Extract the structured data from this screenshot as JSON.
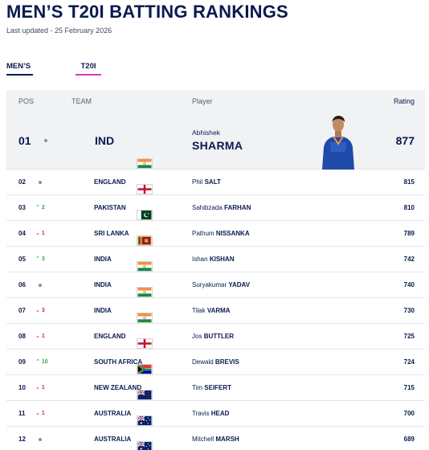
{
  "header": {
    "title": "MEN’S T20I BATTING RANKINGS",
    "last_updated": "Last updated - 25 February 2026"
  },
  "tabs": [
    {
      "label": "MEN’S",
      "active": true
    },
    {
      "label": "T20I",
      "active": true
    }
  ],
  "table": {
    "columns": {
      "pos": "POS",
      "team": "TEAM",
      "player": "Player",
      "rating": "Rating"
    },
    "leader": {
      "pos": "01",
      "movement": "none",
      "flag": "india-flag",
      "team": "IND",
      "first_name": "Abhishek",
      "last_name": "SHARMA",
      "rating": "877"
    },
    "rows": [
      {
        "pos": "02",
        "movement": "none",
        "change": "",
        "flag": "england",
        "team": "ENGLAND",
        "first": "Phil",
        "last": "SALT",
        "rating": "815"
      },
      {
        "pos": "03",
        "movement": "up",
        "change": "2",
        "flag": "pakistan",
        "team": "PAKISTAN",
        "first": "Sahibzada",
        "last": "FARHAN",
        "rating": "810"
      },
      {
        "pos": "04",
        "movement": "down",
        "change": "1",
        "flag": "srilanka",
        "team": "SRI LANKA",
        "first": "Pathum",
        "last": "NISSANKA",
        "rating": "789"
      },
      {
        "pos": "05",
        "movement": "up",
        "change": "3",
        "flag": "india",
        "team": "INDIA",
        "first": "Ishan",
        "last": "KISHAN",
        "rating": "742"
      },
      {
        "pos": "06",
        "movement": "none",
        "change": "",
        "flag": "india",
        "team": "INDIA",
        "first": "Suryakumar",
        "last": "YADAV",
        "rating": "740"
      },
      {
        "pos": "07",
        "movement": "down",
        "change": "3",
        "flag": "india",
        "team": "INDIA",
        "first": "Tilak",
        "last": "VARMA",
        "rating": "730"
      },
      {
        "pos": "08",
        "movement": "down",
        "change": "1",
        "flag": "england",
        "team": "ENGLAND",
        "first": "Jos",
        "last": "BUTTLER",
        "rating": "725"
      },
      {
        "pos": "09",
        "movement": "up",
        "change": "10",
        "flag": "southafrica",
        "team": "SOUTH AFRICA",
        "first": "Dewald",
        "last": "BREVIS",
        "rating": "724"
      },
      {
        "pos": "10",
        "movement": "down",
        "change": "1",
        "flag": "newzealand",
        "team": "NEW ZEALAND",
        "first": "Tim",
        "last": "SEIFERT",
        "rating": "715"
      },
      {
        "pos": "11",
        "movement": "down",
        "change": "1",
        "flag": "australia",
        "team": "AUSTRALIA",
        "first": "Travis",
        "last": "HEAD",
        "rating": "700"
      },
      {
        "pos": "12",
        "movement": "none",
        "change": "",
        "flag": "australia",
        "team": "AUSTRALIA",
        "first": "Mitchell",
        "last": "MARSH",
        "rating": "689"
      }
    ]
  },
  "colors": {
    "navy": "#0a1a4f",
    "tab_accent": "#d03cc0",
    "up": "#2aa84a",
    "down": "#d7263d"
  }
}
